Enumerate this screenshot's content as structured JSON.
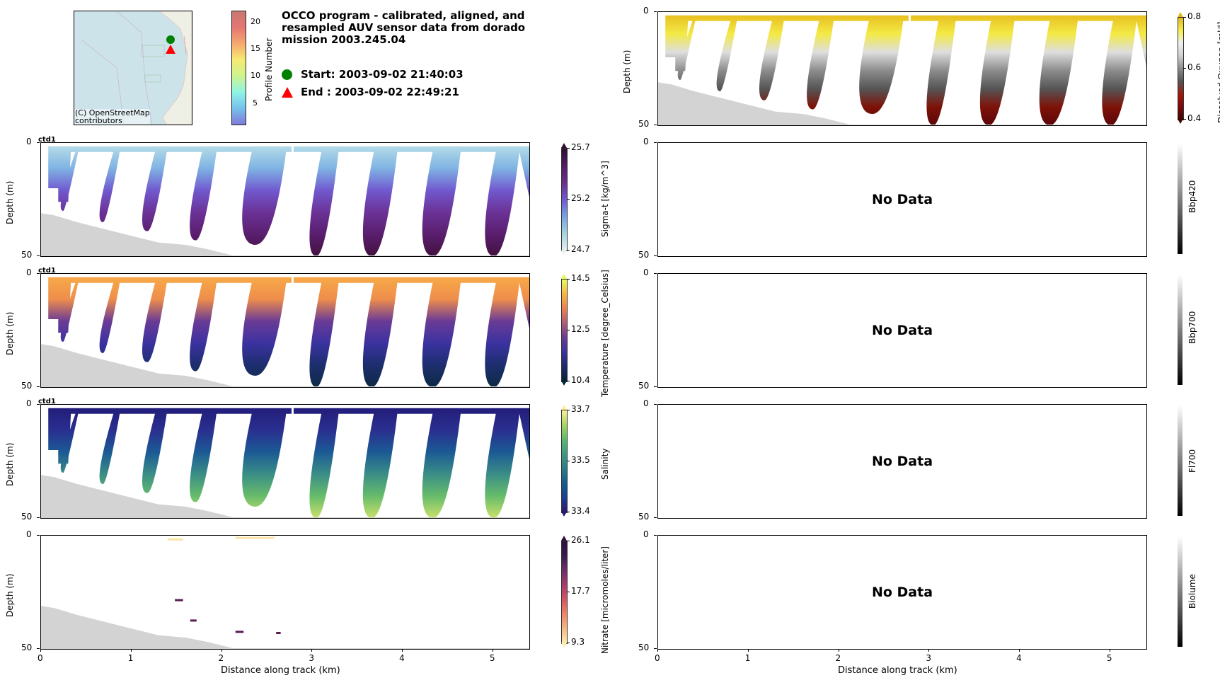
{
  "header": {
    "title_lines": [
      "OCCO program - calibrated, aligned, and",
      "resampled AUV sensor data from dorado",
      "mission 2003.245.04"
    ],
    "start_label": "Start: 2003-09-02 21:40:03",
    "end_label": "End  : 2003-09-02 22:49:21",
    "start_color": "#008000",
    "end_color": "#ff0000"
  },
  "map": {
    "attribution_line1": "(C) OpenStreetMap",
    "attribution_line2": "contributors",
    "water_color": "#cde3ea",
    "colorbar_label": "Profile Number",
    "colorbar_ticks": [
      "5",
      "10",
      "15",
      "20"
    ],
    "colorbar_range": [
      1,
      22
    ]
  },
  "chart_data": [
    {
      "type": "heatmap",
      "id": "sigma_t",
      "title": "",
      "corner_label": "ctd1",
      "xlabel": "",
      "ylabel": "Depth (m)",
      "xlim": [
        0,
        5.4
      ],
      "ylim": [
        50,
        0
      ],
      "yticks": [
        "0",
        "50"
      ],
      "colorbar": {
        "label": "Sigma-t [kg/m^3]",
        "ticks": [
          "24.7",
          "25.2",
          "25.7"
        ],
        "range": [
          24.7,
          25.7
        ],
        "cmap": "dense"
      },
      "has_data": true
    },
    {
      "type": "heatmap",
      "id": "temperature",
      "corner_label": "ctd1",
      "xlabel": "",
      "ylabel": "Depth (m)",
      "xlim": [
        0,
        5.4
      ],
      "ylim": [
        50,
        0
      ],
      "yticks": [
        "0",
        "50"
      ],
      "colorbar": {
        "label": "Temperature [degree_Celsius]",
        "ticks": [
          "10.4",
          "12.5",
          "14.5"
        ],
        "range": [
          10.4,
          14.5
        ],
        "cmap": "thermal"
      },
      "has_data": true
    },
    {
      "type": "heatmap",
      "id": "salinity",
      "corner_label": "ctd1",
      "xlabel": "",
      "ylabel": "Depth (m)",
      "xlim": [
        0,
        5.4
      ],
      "ylim": [
        50,
        0
      ],
      "yticks": [
        "0",
        "50"
      ],
      "colorbar": {
        "label": "Salinity",
        "ticks": [
          "33.4",
          "33.5",
          "33.7"
        ],
        "range": [
          33.4,
          33.7
        ],
        "cmap": "haline"
      },
      "has_data": true
    },
    {
      "type": "heatmap",
      "id": "nitrate",
      "corner_label": "",
      "xlabel": "Distance along track (km)",
      "ylabel": "Depth (m)",
      "xlim": [
        0,
        5.4
      ],
      "ylim": [
        50,
        0
      ],
      "xticks": [
        "0",
        "1",
        "2",
        "3",
        "4",
        "5"
      ],
      "yticks": [
        "0",
        "50"
      ],
      "colorbar": {
        "label": "Nitrate [micromoles/liter]",
        "ticks": [
          "9.3",
          "17.7",
          "26.1"
        ],
        "range": [
          9.3,
          26.1
        ],
        "cmap": "matter"
      },
      "sparse_points": [
        {
          "x0": 1.4,
          "x1": 1.57,
          "depth": 1.2,
          "level": "low"
        },
        {
          "x0": 2.15,
          "x1": 2.58,
          "depth": 0.5,
          "level": "low"
        },
        {
          "x0": 1.48,
          "x1": 1.57,
          "depth": 28,
          "level": "high"
        },
        {
          "x0": 1.65,
          "x1": 1.72,
          "depth": 37,
          "level": "high"
        },
        {
          "x0": 2.15,
          "x1": 2.24,
          "depth": 42,
          "level": "high"
        },
        {
          "x0": 2.6,
          "x1": 2.65,
          "depth": 42.5,
          "level": "high"
        }
      ],
      "has_data": true
    },
    {
      "type": "heatmap",
      "id": "dissolved_oxygen",
      "corner_label": "",
      "xlabel": "",
      "ylabel": "Depth (m)",
      "xlim": [
        0,
        5.4
      ],
      "ylim": [
        50,
        0
      ],
      "yticks": [
        "0",
        "50"
      ],
      "colorbar": {
        "label": "Dissolved Oxygen [ml/l]",
        "ticks": [
          "0.4",
          "0.6",
          "0.8"
        ],
        "range": [
          0.4,
          0.8
        ],
        "cmap": "oxy"
      },
      "has_data": true
    },
    {
      "type": "heatmap",
      "id": "bbp420",
      "ylabel": "",
      "xlim": [
        0,
        5.4
      ],
      "ylim": [
        50,
        0
      ],
      "yticks": [
        "0",
        "50"
      ],
      "message": "No Data",
      "colorbar": {
        "label": "Bbp420",
        "ticks": [],
        "cmap": "gray"
      },
      "has_data": false
    },
    {
      "type": "heatmap",
      "id": "bbp700",
      "ylabel": "",
      "xlim": [
        0,
        5.4
      ],
      "ylim": [
        50,
        0
      ],
      "yticks": [
        "0",
        "50"
      ],
      "message": "No Data",
      "colorbar": {
        "label": "Bbp700",
        "ticks": [],
        "cmap": "gray"
      },
      "has_data": false
    },
    {
      "type": "heatmap",
      "id": "fl700",
      "ylabel": "",
      "xlim": [
        0,
        5.4
      ],
      "ylim": [
        50,
        0
      ],
      "yticks": [
        "0",
        "50"
      ],
      "message": "No Data",
      "colorbar": {
        "label": "Fl700",
        "ticks": [],
        "cmap": "gray"
      },
      "has_data": false
    },
    {
      "type": "heatmap",
      "id": "biolume",
      "ylabel": "",
      "xlim": [
        0,
        5.4
      ],
      "ylim": [
        50,
        0
      ],
      "yticks": [
        "0",
        "50"
      ],
      "message": "No Data",
      "xlabel": "Distance along track (km)",
      "xticks": [
        "0",
        "1",
        "2",
        "3",
        "4",
        "5"
      ],
      "colorbar": {
        "label": "Biolume",
        "ticks": [],
        "cmap": "gray"
      },
      "has_data": false
    }
  ],
  "track": {
    "yo_troughs_km": [
      0.0,
      0.42,
      0.88,
      1.4,
      1.95,
      2.72,
      3.3,
      3.95,
      4.65,
      5.3
    ],
    "yo_bottom_depths_m": [
      20,
      30,
      35,
      39,
      43,
      45,
      50,
      50,
      50,
      50
    ],
    "gap_km": 2.77,
    "bathymetry_km": [
      0,
      0.15,
      0.4,
      0.7,
      1.0,
      1.3,
      1.6,
      1.85,
      2.05,
      2.12,
      5.4
    ],
    "bathymetry_m": [
      31,
      32,
      35,
      38,
      41,
      44,
      45,
      47,
      49,
      49.7,
      49.7
    ]
  }
}
